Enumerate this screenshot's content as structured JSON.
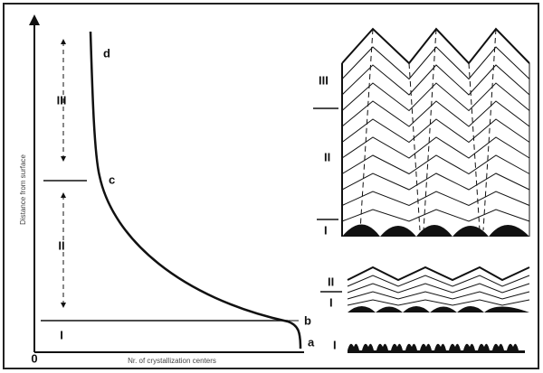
{
  "figure": {
    "y_axis_label": "Distance from surface",
    "x_axis_label": "Nr. of crystallization centers",
    "origin": "0",
    "zones": [
      "I",
      "II",
      "III"
    ],
    "points": [
      "a",
      "b",
      "c",
      "d"
    ],
    "right_labels": {
      "upper": [
        "III",
        "II",
        "I"
      ],
      "middle": [
        "II",
        "I"
      ],
      "bottom": [
        "I"
      ]
    }
  }
}
